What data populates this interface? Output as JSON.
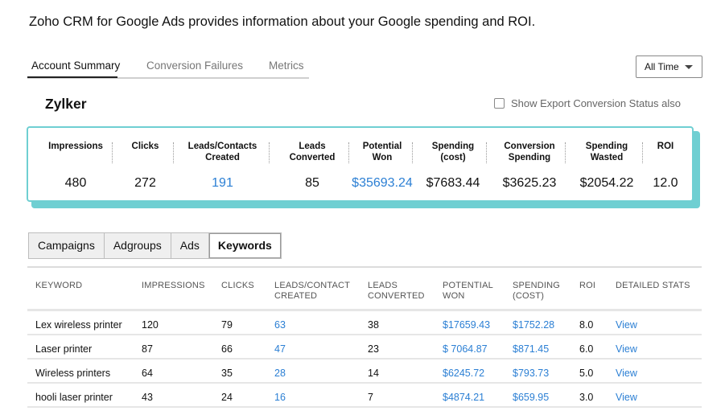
{
  "intro": "Zoho CRM for Google Ads provides information about your Google spending and ROI.",
  "tabs": [
    "Account Summary",
    "Conversion Failures",
    "Metrics"
  ],
  "period_select": "All Time",
  "account_name": "Zylker",
  "export_checkbox_label": "Show Export Conversion Status also",
  "accent_color": "#6fcfd2",
  "link_color": "#2b7fd4",
  "summary": [
    {
      "label": "Impressions",
      "value": "480"
    },
    {
      "label": "Clicks",
      "value": "272"
    },
    {
      "label": "Leads/Contacts Created",
      "value": "191"
    },
    {
      "label": "Leads Converted",
      "value": "85"
    },
    {
      "label": "Potential Won",
      "value": "$35693.24"
    },
    {
      "label": "Spending (cost)",
      "value": "$7683.44"
    },
    {
      "label": "Conversion Spending",
      "value": "$3625.23"
    },
    {
      "label": "Spending Wasted",
      "value": "$2054.22"
    },
    {
      "label": "ROI",
      "value": "12.0"
    }
  ],
  "subtabs": [
    "Campaigns",
    "Adgroups",
    "Ads",
    "Keywords"
  ],
  "table": {
    "headers": [
      "KEYWORD",
      "IMPRESSIONS",
      "CLICKS",
      "LEADS/CONTACT CREATED",
      "LEADS CONVERTED",
      "POTENTIAL WON",
      "SPENDING (COST)",
      "ROI",
      "DETAILED STATS"
    ],
    "rows": [
      [
        "Lex wireless printer",
        "120",
        "79",
        "63",
        "38",
        "$17659.43",
        "$1752.28",
        "8.0",
        "View"
      ],
      [
        "Laser printer",
        "87",
        "66",
        "47",
        "23",
        "$ 7064.87",
        "$871.45",
        "6.0",
        "View"
      ],
      [
        "Wireless printers",
        "64",
        "35",
        "28",
        "14",
        "$6245.72",
        "$793.73",
        "5.0",
        "View"
      ],
      [
        "hooli laser printer",
        "43",
        "24",
        "16",
        "7",
        "$4874.21",
        "$659.95",
        "3.0",
        "View"
      ]
    ]
  }
}
